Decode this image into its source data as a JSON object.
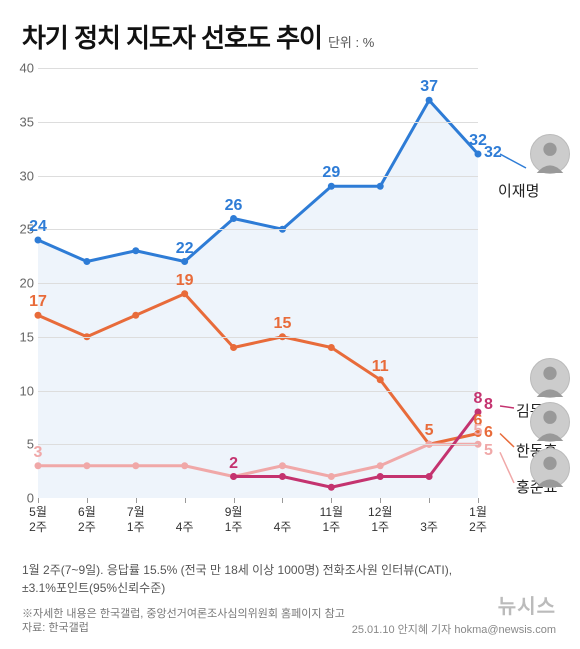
{
  "title": "차기 정치 지도자 선호도 추이",
  "unit": "단위 : %",
  "chart": {
    "type": "line",
    "ylim": [
      0,
      40
    ],
    "ytick_step": 5,
    "grid_color": "#dddddd",
    "axis_color": "#999999",
    "x_categories": [
      "5월\n2주",
      "6월\n2주",
      "7월\n1주",
      "4주",
      "9월\n1주",
      "4주",
      "11월\n1주",
      "12월\n1주",
      "3주",
      "1월\n2주"
    ],
    "series": [
      {
        "name": "이재명",
        "name_en": "lee-jae-myung",
        "color": "#2e7cd6",
        "width": 3,
        "values": [
          24,
          22,
          23,
          22,
          26,
          25,
          29,
          29,
          37,
          32
        ],
        "area_fill": "#eef4fb",
        "labels": [
          {
            "i": 0,
            "v": 24
          },
          {
            "i": 3,
            "v": 22
          },
          {
            "i": 4,
            "v": 26
          },
          {
            "i": 6,
            "v": 29
          },
          {
            "i": 8,
            "v": 37
          },
          {
            "i": 9,
            "v": 32
          }
        ]
      },
      {
        "name": "한동훈",
        "name_en": "han-dong-hoon",
        "color": "#e86b3a",
        "width": 3,
        "values": [
          17,
          15,
          17,
          19,
          14,
          15,
          14,
          11,
          5,
          6
        ],
        "labels": [
          {
            "i": 0,
            "v": 17
          },
          {
            "i": 3,
            "v": 19
          },
          {
            "i": 5,
            "v": 15
          },
          {
            "i": 7,
            "v": 11
          },
          {
            "i": 8,
            "v": 5
          },
          {
            "i": 9,
            "v": 6
          }
        ]
      },
      {
        "name": "홍준표",
        "name_en": "hong-jun-pyo",
        "color": "#f0a8a8",
        "width": 3,
        "values": [
          3,
          3,
          3,
          3,
          2,
          3,
          2,
          3,
          5,
          5
        ],
        "labels": [
          {
            "i": 0,
            "v": 3
          },
          {
            "i": 9,
            "v": 5
          }
        ]
      },
      {
        "name": "김문수",
        "name_en": "kim-moon-soo",
        "color": "#c4336f",
        "width": 3,
        "values": [
          null,
          null,
          null,
          null,
          2,
          2,
          1,
          2,
          2,
          8
        ],
        "labels": [
          {
            "i": 4,
            "v": 2
          },
          {
            "i": 9,
            "v": 8
          }
        ]
      }
    ]
  },
  "footnote1": "1월 2주(7~9일). 응답률 15.5% (전국 만 18세 이상 1000명) 전화조사원 인터뷰(CATI),",
  "footnote1b": "±3.1%포인트(95%신뢰수준)",
  "footnote2": "※자세한 내용은 한국갤럽, 중앙선거여론조사심의위원회 홈페이지 참고",
  "source": "자료: 한국갤럽",
  "watermark": "뉴시스",
  "credit": "25.01.10  안지혜 기자 hokma@newsis.com"
}
